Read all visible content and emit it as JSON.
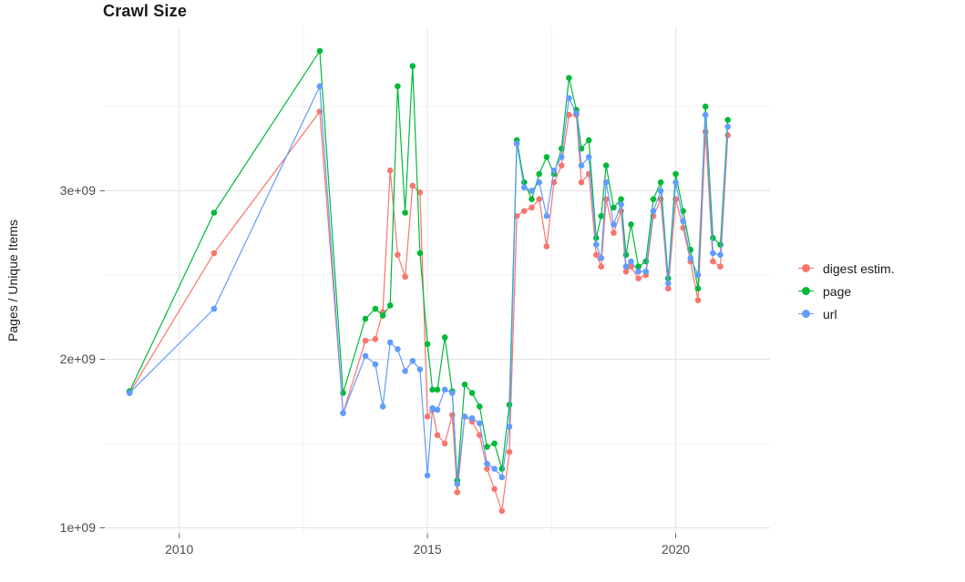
{
  "chart_data": {
    "type": "line",
    "title": "Crawl Size",
    "xlabel": "",
    "ylabel": "Pages / Unique Items",
    "y_unit": "values are in units of 1e9 pages / unique items",
    "grid": true,
    "legend_position": "right",
    "xlim": [
      2008.5,
      2021.9
    ],
    "ylim": [
      0.97,
      3.97
    ],
    "x_ticks": [
      {
        "value": 2010,
        "label": "2010"
      },
      {
        "value": 2015,
        "label": "2015"
      },
      {
        "value": 2020,
        "label": "2020"
      }
    ],
    "x_minor_ticks": [
      2012.5,
      2017.5
    ],
    "y_ticks": [
      {
        "value": 1,
        "label": "1e+09"
      },
      {
        "value": 2,
        "label": "2e+09"
      },
      {
        "value": 3,
        "label": "3e+09"
      }
    ],
    "y_minor_ticks": [
      1.5,
      2.5,
      3.5
    ],
    "x": [
      2009.0,
      2010.7,
      2012.83,
      2013.3,
      2013.75,
      2013.95,
      2014.1,
      2014.25,
      2014.4,
      2014.55,
      2014.7,
      2014.85,
      2015.0,
      2015.1,
      2015.2,
      2015.35,
      2015.5,
      2015.6,
      2015.75,
      2015.9,
      2016.05,
      2016.2,
      2016.35,
      2016.5,
      2016.65,
      2016.8,
      2016.95,
      2017.1,
      2017.25,
      2017.4,
      2017.55,
      2017.7,
      2017.85,
      2018.0,
      2018.1,
      2018.25,
      2018.4,
      2018.5,
      2018.6,
      2018.75,
      2018.9,
      2019.0,
      2019.1,
      2019.25,
      2019.4,
      2019.55,
      2019.7,
      2019.85,
      2020.0,
      2020.15,
      2020.3,
      2020.45,
      2020.6,
      2020.75,
      2020.9,
      2021.05
    ],
    "series": [
      {
        "name": "digest estim.",
        "color": "#F8766D",
        "values": [
          1.8,
          2.63,
          3.47,
          1.68,
          2.11,
          2.12,
          2.28,
          3.12,
          2.62,
          2.49,
          3.03,
          2.99,
          1.66,
          1.7,
          1.55,
          1.5,
          1.67,
          1.21,
          1.66,
          1.63,
          1.55,
          1.35,
          1.23,
          1.1,
          1.45,
          2.85,
          2.88,
          2.9,
          2.95,
          2.67,
          3.05,
          3.15,
          3.45,
          3.45,
          3.05,
          3.1,
          2.62,
          2.55,
          2.95,
          2.75,
          2.88,
          2.52,
          2.55,
          2.48,
          2.5,
          2.85,
          2.95,
          2.42,
          2.95,
          2.78,
          2.58,
          2.35,
          3.35,
          2.58,
          2.55,
          3.33
        ]
      },
      {
        "name": "page",
        "color": "#00BA38",
        "values": [
          1.81,
          2.87,
          3.83,
          1.8,
          2.24,
          2.3,
          2.26,
          2.32,
          3.62,
          2.87,
          3.74,
          2.63,
          2.09,
          1.82,
          1.82,
          2.13,
          1.81,
          1.28,
          1.85,
          1.8,
          1.72,
          1.48,
          1.5,
          1.35,
          1.73,
          3.3,
          3.05,
          2.95,
          3.1,
          3.2,
          3.1,
          3.25,
          3.67,
          3.48,
          3.25,
          3.3,
          2.72,
          2.85,
          3.15,
          2.9,
          2.95,
          2.62,
          2.8,
          2.55,
          2.58,
          2.95,
          3.05,
          2.48,
          3.1,
          2.88,
          2.65,
          2.42,
          3.5,
          2.72,
          2.68,
          3.42
        ]
      },
      {
        "name": "url",
        "color": "#619CFF",
        "values": [
          1.8,
          2.3,
          3.62,
          1.68,
          2.02,
          1.97,
          1.72,
          2.1,
          2.06,
          1.93,
          1.99,
          1.94,
          1.31,
          1.71,
          1.7,
          1.82,
          1.8,
          1.26,
          1.66,
          1.65,
          1.62,
          1.38,
          1.35,
          1.3,
          1.6,
          3.28,
          3.02,
          3.0,
          3.05,
          2.85,
          3.12,
          3.2,
          3.55,
          3.46,
          3.15,
          3.2,
          2.68,
          2.6,
          3.05,
          2.8,
          2.92,
          2.55,
          2.58,
          2.52,
          2.52,
          2.88,
          3.0,
          2.45,
          3.05,
          2.82,
          2.6,
          2.5,
          3.45,
          2.63,
          2.62,
          3.38
        ]
      }
    ]
  },
  "legend": {
    "items": [
      {
        "label": "digest estim.",
        "color": "#F8766D"
      },
      {
        "label": "page",
        "color": "#00BA38"
      },
      {
        "label": "url",
        "color": "#619CFF"
      }
    ]
  },
  "style": {
    "grid_major_color": "#e4e4e4",
    "grid_minor_color": "#f2f2f2",
    "tick_color": "#666666",
    "tick_label_color": "#4d4d4d"
  }
}
